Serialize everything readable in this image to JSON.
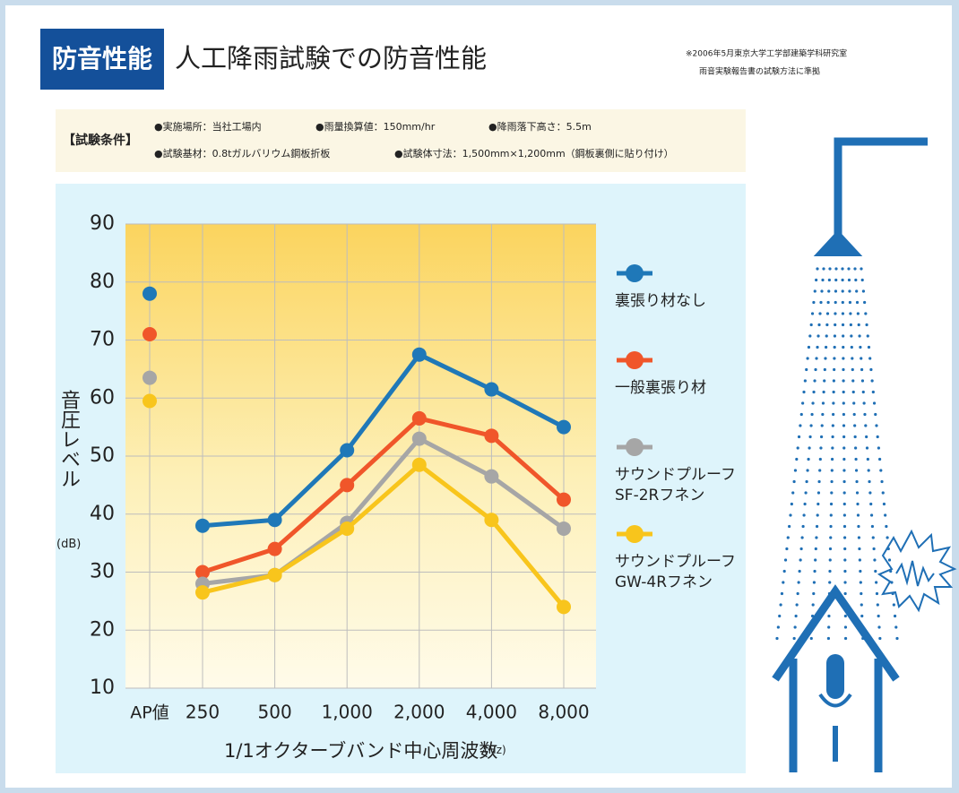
{
  "badge": "防音性能",
  "title": "人工降雨試験での防音性能",
  "notes": [
    "※2006年5月東京大学工学部建築学科研究室",
    "雨音実験報告書の試験方法に準拠"
  ],
  "conditions": {
    "label": "【試験条件】",
    "items": [
      "●実施場所：当社工場内",
      "●雨量換算値：150mm/hr",
      "●降雨落下高さ：5.5m",
      "●試験基材：0.8tガルバリウム鋼板折板",
      "●試験体寸法：1,500mm×1,200mm（鋼板裏側に貼り付け）"
    ]
  },
  "chart_data": {
    "type": "line",
    "y_label": "音圧レベル",
    "y_unit": "(dB)",
    "x_label": "1/1オクターブバンド中心周波数",
    "x_unit": "(Hz)",
    "ap_label": "AP値",
    "categories": [
      "250",
      "500",
      "1,000",
      "2,000",
      "4,000",
      "8,000"
    ],
    "ylim": [
      10,
      90
    ],
    "yticks": [
      10,
      20,
      30,
      40,
      50,
      60,
      70,
      80,
      90
    ],
    "grid": true,
    "series": [
      {
        "name": "裏張り材なし",
        "color": "#1f78b8",
        "ap": 78,
        "values": [
          38,
          39,
          51,
          67.5,
          61.5,
          55
        ]
      },
      {
        "name": "一般裏張り材",
        "color": "#f0562a",
        "ap": 71,
        "values": [
          30,
          34,
          45,
          56.5,
          53.5,
          42.5
        ]
      },
      {
        "name": "サウンドプルーフ\nSF-2Rフネン",
        "color": "#a6a6a6",
        "ap": 63.5,
        "values": [
          28,
          29.5,
          38.5,
          53,
          46.5,
          37.5
        ]
      },
      {
        "name": "サウンドプルーフ\nGW-4Rフネン",
        "color": "#f8c51c",
        "ap": 59.5,
        "values": [
          26.5,
          29.5,
          37.5,
          48.5,
          39,
          24
        ]
      }
    ]
  }
}
